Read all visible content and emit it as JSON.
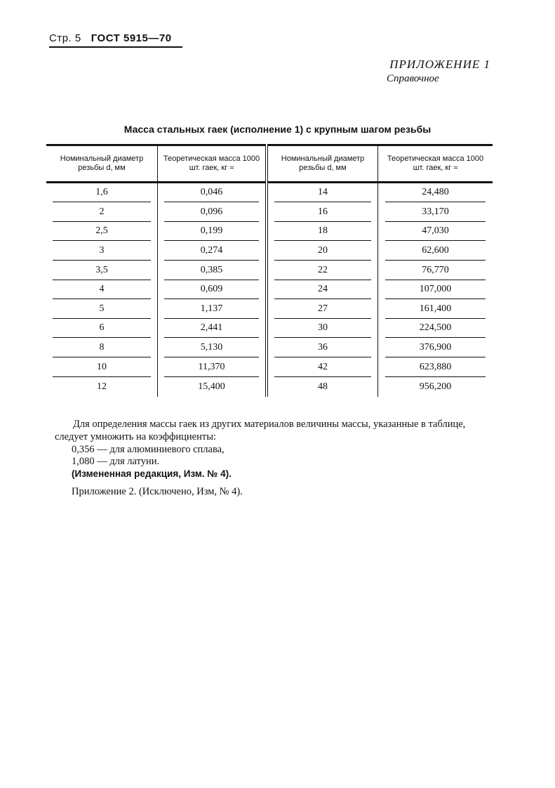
{
  "header": {
    "page": "Стр. 5",
    "doc": "ГОСТ 5915—70"
  },
  "appendix": {
    "title": "ПРИЛОЖЕНИЕ 1",
    "subtitle": "Справочное"
  },
  "table": {
    "title": "Масса стальных гаек (исполнение 1) с крупным шагом резьбы",
    "headers": [
      "Номинальный диаметр резьбы d, мм",
      "Теоретическая масса 1000 шт. гаек, кг ≈",
      "Номинальный диаметр резьбы d, мм",
      "Теоретическая масса 1000 шт. гаек, кг ≈"
    ],
    "rows": [
      [
        "1,6",
        "0,046",
        "14",
        "24,480"
      ],
      [
        "2",
        "0,096",
        "16",
        "33,170"
      ],
      [
        "2,5",
        "0,199",
        "18",
        "47,030"
      ],
      [
        "3",
        "0,274",
        "20",
        "62,600"
      ],
      [
        "3,5",
        "0,385",
        "22",
        "76,770"
      ],
      [
        "4",
        "0,609",
        "24",
        "107,000"
      ],
      [
        "5",
        "1,137",
        "27",
        "161,400"
      ],
      [
        "6",
        "2,441",
        "30",
        "224,500"
      ],
      [
        "8",
        "5,130",
        "36",
        "376,900"
      ],
      [
        "10",
        "11,370",
        "42",
        "623,880"
      ],
      [
        "12",
        "15,400",
        "48",
        "956,200"
      ]
    ]
  },
  "notes": {
    "para": "Для определения массы гаек из других материалов величины массы, указанные в таблице, следует умножить на коэффициенты:",
    "coef1": "0,356 — для алюминиевого сплава,",
    "coef2": "1,080 — для латуни.",
    "changed": "(Измененная редакция, Изм. № 4).",
    "appendix2": "Приложение 2. (Исключено, Изм, № 4)."
  }
}
